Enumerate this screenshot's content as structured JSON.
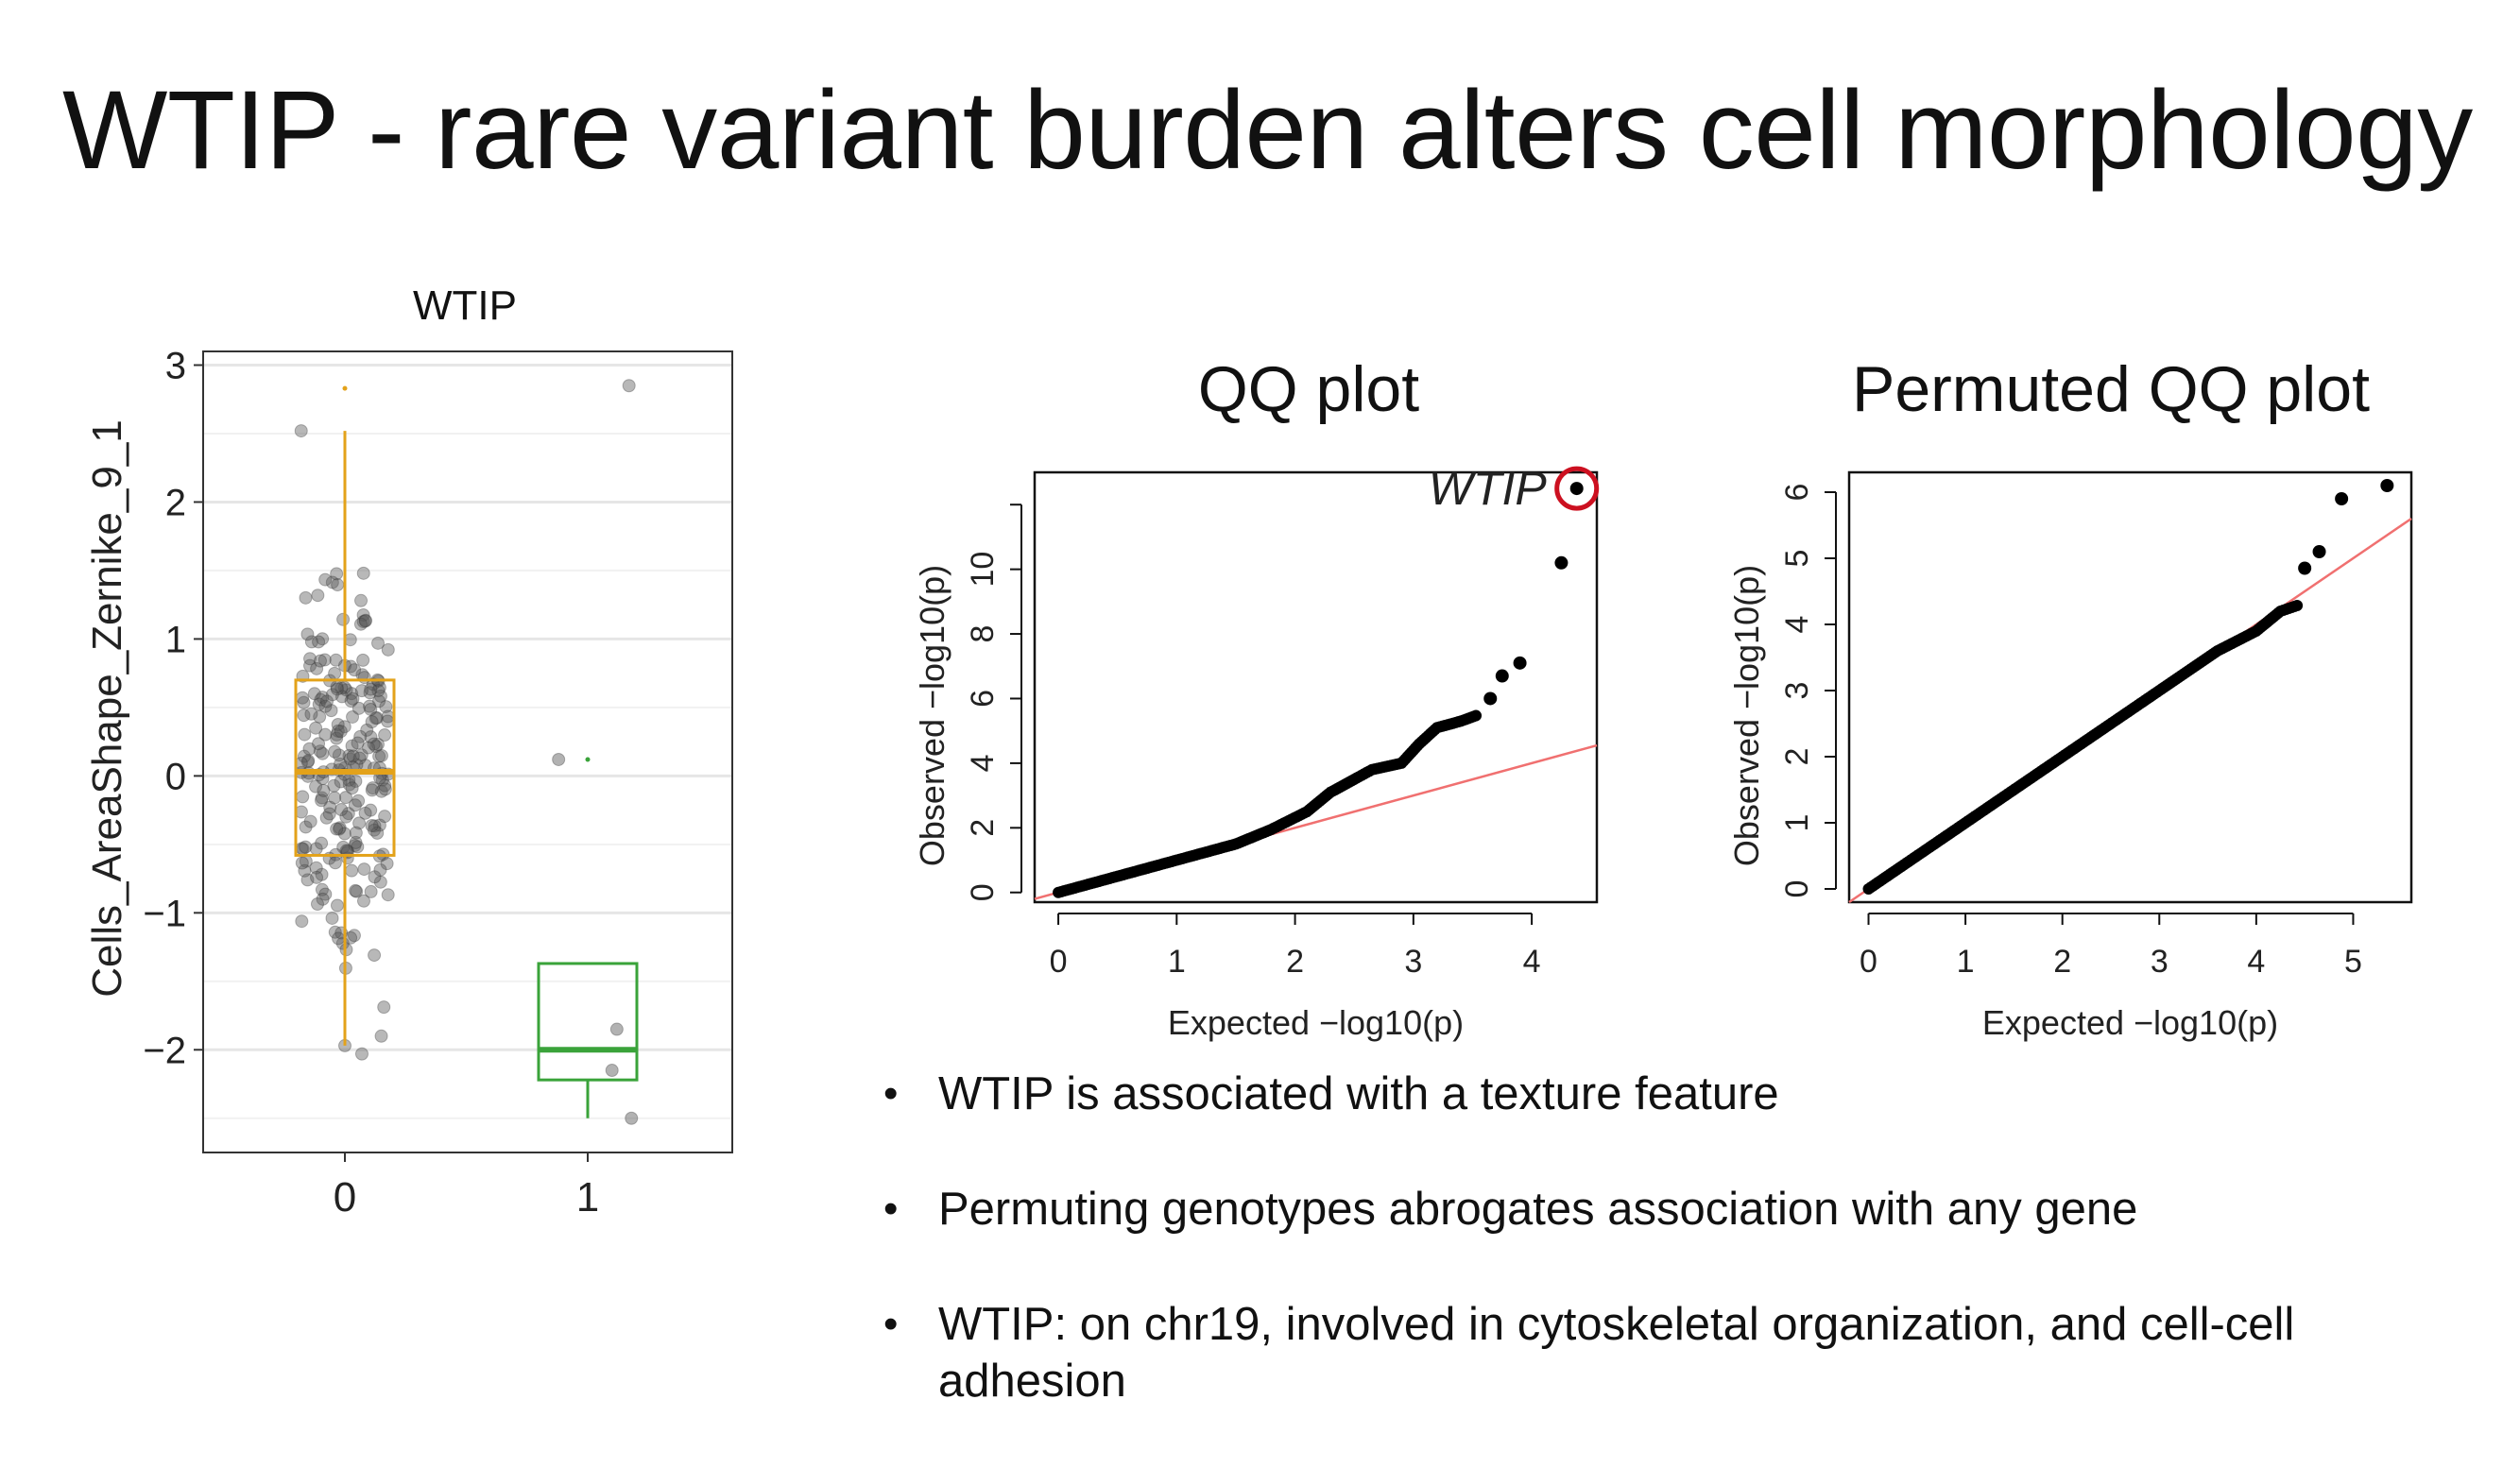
{
  "slide": {
    "title": "WTIP - rare variant burden alters cell morphology"
  },
  "bullets": [
    "WTIP is associated with a texture feature",
    "Permuting genotypes abrogates association with any gene",
    "WTIP: on chr19, involved in cytoskeletal organization, and cell-cell adhesion"
  ],
  "colors": {
    "group0": "#e3a21a",
    "group1": "#3aa33a",
    "points": "#555555",
    "qq_points": "#000000",
    "ref_line": "#f07070",
    "highlight": "#cc1020"
  },
  "chart_data": [
    {
      "type": "box",
      "title": "WTIP",
      "ylabel": "Cells_AreaShape_Zernike_9_1",
      "xlabel": "",
      "categories": [
        "0",
        "1"
      ],
      "ylim": [
        -2.75,
        3.1
      ],
      "yticks": [
        -2,
        -1,
        0,
        1,
        2,
        3
      ],
      "ytick_labels": [
        "−2",
        "−1",
        "0",
        "1",
        "2",
        "3"
      ],
      "grid": true,
      "boxes": [
        {
          "group": "0",
          "q1": -0.58,
          "median": 0.03,
          "q3": 0.7,
          "whisker_low": -1.97,
          "whisker_high": 2.52,
          "outliers": [
            2.83
          ]
        },
        {
          "group": "1",
          "q1": -2.22,
          "median": -2.0,
          "q3": -1.37,
          "whisker_low": -2.5,
          "whisker_high": -1.37,
          "outliers": [
            0.12
          ]
        }
      ],
      "jitter_points": {
        "group1": [
          {
            "x": 0.88,
            "y": 0.12
          },
          {
            "x": 1.12,
            "y": -1.85
          },
          {
            "x": 1.1,
            "y": -2.15
          },
          {
            "x": 1.18,
            "y": -2.5
          }
        ],
        "group0_count": 230,
        "group0_extremes": [
          {
            "x": 1.17,
            "y": 2.85
          },
          {
            "x": -0.18,
            "y": 2.52
          },
          {
            "x": 0.0,
            "y": -1.97
          },
          {
            "x": 0.07,
            "y": -2.03
          },
          {
            "x": 0.15,
            "y": -1.9
          }
        ]
      }
    },
    {
      "type": "scatter",
      "title": "QQ plot",
      "xlabel": "Expected −log10(p)",
      "ylabel": "Observed −log10(p)",
      "xlim": [
        -0.2,
        4.55
      ],
      "ylim": [
        -0.3,
        13.0
      ],
      "xticks": [
        0,
        1,
        2,
        3,
        4
      ],
      "yticks": [
        0,
        2,
        4,
        6,
        8,
        10
      ],
      "reference_line": {
        "slope": 1.0,
        "intercept": 0.0
      },
      "curve": [
        [
          0,
          0
        ],
        [
          0.5,
          0.5
        ],
        [
          1.0,
          1.0
        ],
        [
          1.5,
          1.5
        ],
        [
          1.8,
          1.95
        ],
        [
          2.1,
          2.5
        ],
        [
          2.3,
          3.1
        ],
        [
          2.5,
          3.5
        ],
        [
          2.65,
          3.8
        ],
        [
          2.9,
          4.0
        ],
        [
          3.05,
          4.6
        ],
        [
          3.2,
          5.1
        ],
        [
          3.4,
          5.3
        ],
        [
          3.55,
          5.5
        ]
      ],
      "tail_points": [
        {
          "x": 3.65,
          "y": 6.0
        },
        {
          "x": 3.75,
          "y": 6.7
        },
        {
          "x": 3.9,
          "y": 7.1
        },
        {
          "x": 4.25,
          "y": 10.2
        },
        {
          "x": 4.38,
          "y": 12.5,
          "label": "WTIP"
        }
      ]
    },
    {
      "type": "scatter",
      "title": "Permuted QQ plot",
      "xlabel": "Expected −log10(p)",
      "ylabel": "Observed −log10(p)",
      "xlim": [
        -0.2,
        5.6
      ],
      "ylim": [
        -0.2,
        6.3
      ],
      "xticks": [
        0,
        1,
        2,
        3,
        4,
        5
      ],
      "yticks": [
        0,
        1,
        2,
        3,
        4,
        5,
        6
      ],
      "reference_line": {
        "slope": 1.0,
        "intercept": 0.0
      },
      "curve": [
        [
          0,
          0
        ],
        [
          1,
          1
        ],
        [
          2,
          2
        ],
        [
          3,
          3
        ],
        [
          3.3,
          3.3
        ],
        [
          3.6,
          3.6
        ],
        [
          3.8,
          3.75
        ],
        [
          4.0,
          3.9
        ],
        [
          4.25,
          4.2
        ],
        [
          4.45,
          4.3
        ]
      ],
      "tail_points": [
        {
          "x": 4.5,
          "y": 4.85
        },
        {
          "x": 4.65,
          "y": 5.1
        },
        {
          "x": 4.88,
          "y": 5.9
        },
        {
          "x": 5.35,
          "y": 6.1
        }
      ]
    }
  ]
}
